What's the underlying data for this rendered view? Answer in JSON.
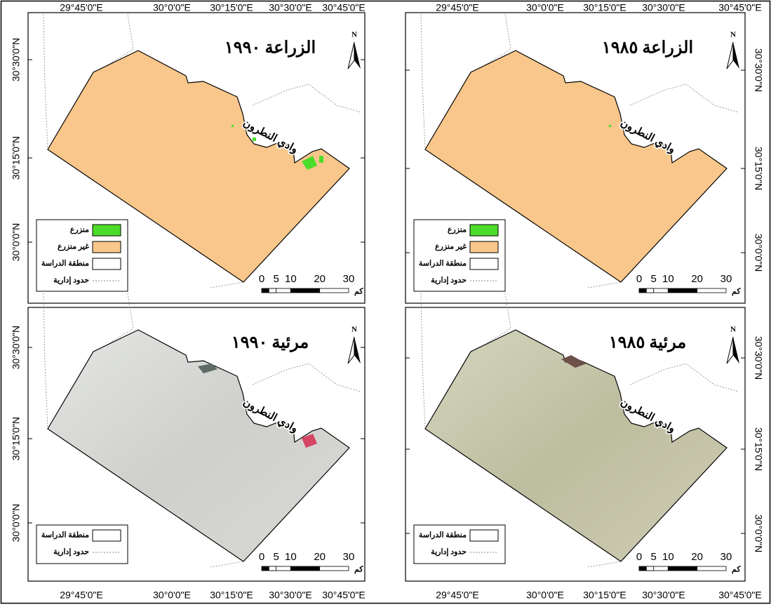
{
  "longitude_labels": [
    "29°45'0\"E",
    "30°0'0\"E",
    "30°15'0\"E",
    "30°30'0\"E",
    "30°45'0\"E"
  ],
  "latitude_labels": [
    "30°30'0\"N",
    "30°15'0\"N",
    "30°0'0\"N"
  ],
  "north_label": "N",
  "place_label": "وادي النطرون",
  "legend": {
    "cultivated": "منزرع",
    "uncultivated": "غير منزرع",
    "study_area": "منطقة الدراسة",
    "admin_boundary": "حدود إدارية"
  },
  "scale": {
    "ticks": [
      0,
      5,
      10,
      20,
      30
    ],
    "unit": "كم"
  },
  "top_row": [
    {
      "title": "الزراعة ١٩٩٠"
    },
    {
      "title": "الزراعة ١٩٨٥"
    }
  ],
  "bottom_row": [
    {
      "title": "مرئية ١٩٩٠"
    },
    {
      "title": "مرئية ١٩٨٥"
    }
  ]
}
